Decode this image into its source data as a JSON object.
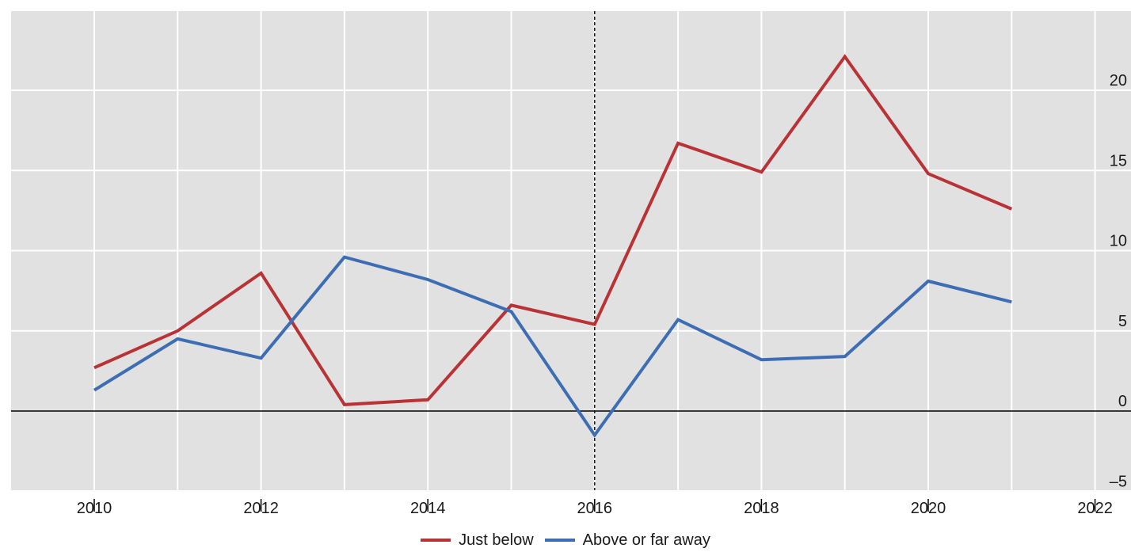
{
  "chart_data": {
    "type": "line",
    "title": "",
    "xlabel": "",
    "ylabel": "",
    "xlim": [
      2009,
      2022.5
    ],
    "ylim": [
      -5,
      24
    ],
    "x_ticks": [
      "2010",
      "2012",
      "2014",
      "2016",
      "2018",
      "2020",
      "2022"
    ],
    "y_ticks": [
      "20",
      "15",
      "10",
      "5",
      "0",
      "–5"
    ],
    "grid": true,
    "y_axis_side": "right",
    "reference_lines": {
      "horizontal_zero": true,
      "vertical_dashed_at": 2016
    },
    "legend_placement": "bottom-center",
    "x": [
      2010,
      2011,
      2012,
      2013,
      2014,
      2015,
      2016,
      2017,
      2018,
      2019,
      2020,
      2021
    ],
    "series": [
      {
        "name": "Just below",
        "color": "#b83236",
        "values": [
          2.7,
          5.0,
          8.6,
          0.4,
          0.7,
          6.6,
          5.4,
          16.7,
          14.9,
          22.1,
          14.8,
          12.6
        ]
      },
      {
        "name": "Above or far away",
        "color": "#3d6eb3",
        "values": [
          1.3,
          4.5,
          3.3,
          9.6,
          8.2,
          6.2,
          -1.5,
          5.7,
          3.2,
          3.4,
          8.1,
          6.8
        ]
      }
    ]
  }
}
